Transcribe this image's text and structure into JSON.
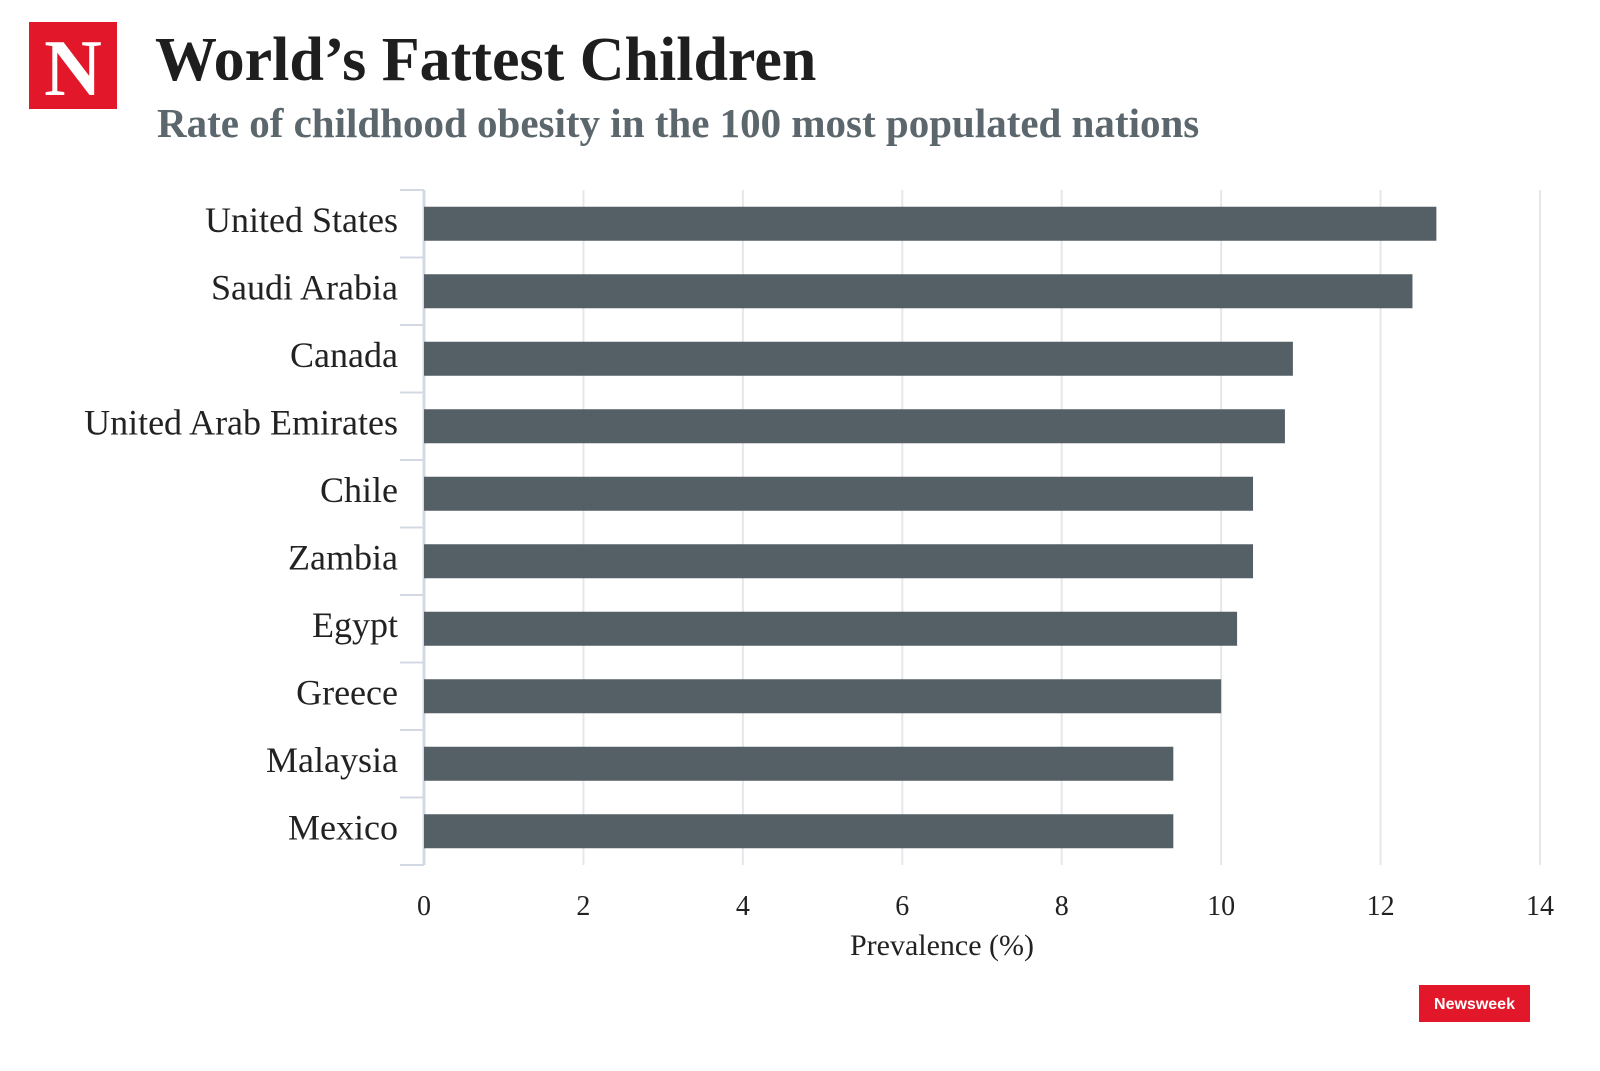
{
  "logo": "N",
  "brand": "Newsweek",
  "chart_data": {
    "type": "bar",
    "orientation": "horizontal",
    "title": "World’s Fattest Children",
    "subtitle": "Rate of childhood obesity in the 100 most populated nations",
    "x_label": "Prevalence (%)",
    "categories": [
      "United States",
      "Saudi Arabia",
      "Canada",
      "United Arab Emirates",
      "Chile",
      "Zambia",
      "Egypt",
      "Greece",
      "Malaysia",
      "Mexico"
    ],
    "values": [
      12.7,
      12.4,
      10.9,
      10.8,
      10.4,
      10.4,
      10.2,
      10.0,
      9.4,
      9.4
    ],
    "color": "#545f66",
    "xlim": [
      0,
      14
    ],
    "xticks": [
      0,
      2,
      4,
      6,
      8,
      10,
      12,
      14
    ],
    "grid": true
  }
}
